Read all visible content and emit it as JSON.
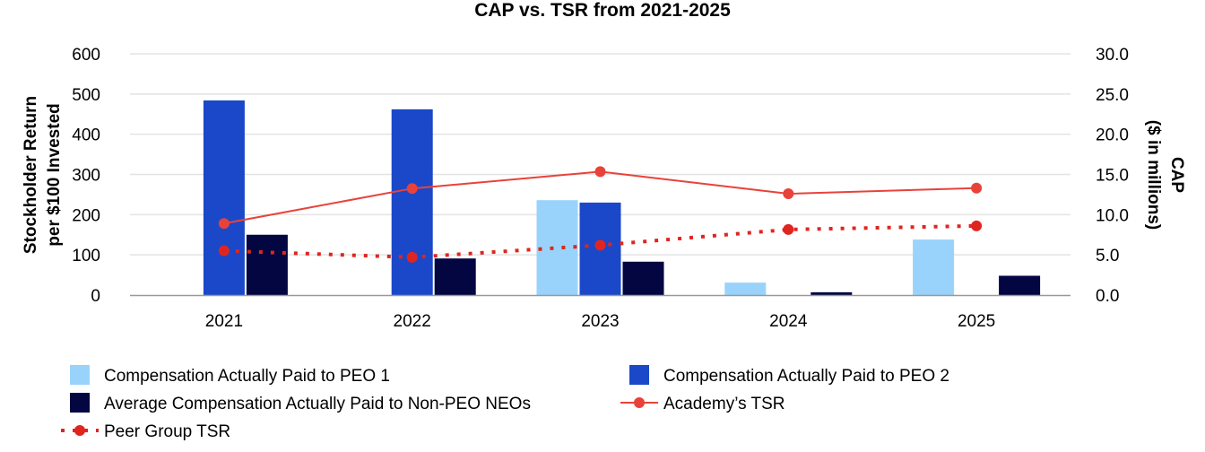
{
  "chart_data": {
    "type": "bar",
    "title": "CAP vs. TSR from 2021-2025",
    "categories": [
      "2021",
      "2022",
      "2023",
      "2024",
      "2025"
    ],
    "y_left": {
      "label_lines": [
        "Stockholder Return",
        "per $100 Invested"
      ],
      "ticks": [
        "0",
        "100",
        "200",
        "300",
        "400",
        "500",
        "600"
      ],
      "range": [
        0,
        600
      ]
    },
    "y_right": {
      "label_lines": [
        "CAP",
        "($ in millions)"
      ],
      "ticks": [
        "0.0",
        "5.0",
        "10.0",
        "15.0",
        "20.0",
        "25.0",
        "30.0"
      ],
      "range": [
        0,
        30
      ]
    },
    "grid": true,
    "legend_position": "bottom",
    "bar_series": [
      {
        "name": "Compensation Actually Paid to PEO 1",
        "color": "#99d3fb",
        "axis": "right",
        "values": [
          null,
          null,
          11.8,
          1.55,
          6.9
        ]
      },
      {
        "name": "Compensation Actually Paid to PEO 2",
        "color": "#1b48c8",
        "axis": "right",
        "values": [
          24.2,
          23.1,
          11.5,
          null,
          null
        ]
      },
      {
        "name": "Average Compensation Actually Paid to Non-PEO NEOs",
        "color": "#030641",
        "axis": "right",
        "values": [
          7.5,
          4.55,
          4.15,
          0.35,
          2.4
        ]
      }
    ],
    "line_series": [
      {
        "name": "Academy’s TSR",
        "color": "#e8423a",
        "style": "solid",
        "axis": "left",
        "values": [
          178,
          265,
          307,
          252,
          266
        ]
      },
      {
        "name": "Peer Group TSR",
        "color": "#e02520",
        "style": "dotted",
        "axis": "left",
        "values": [
          110,
          94,
          124,
          163,
          172
        ]
      }
    ]
  }
}
